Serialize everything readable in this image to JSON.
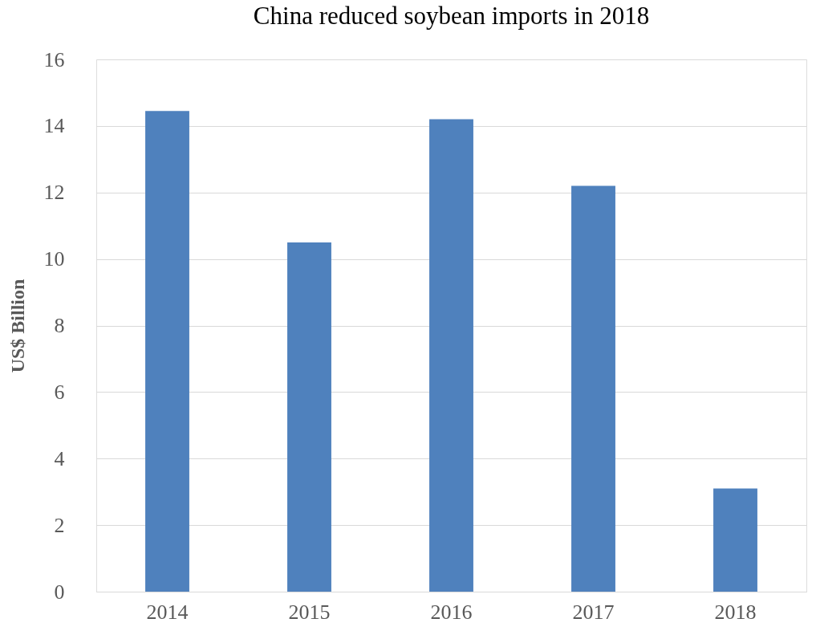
{
  "chart_data": {
    "type": "bar",
    "title": "China reduced soybean imports in 2018",
    "ylabel": "US$ Billion",
    "categories": [
      "2014",
      "2015",
      "2016",
      "2017",
      "2018"
    ],
    "values": [
      14.45,
      10.5,
      14.2,
      12.2,
      3.1
    ],
    "color": "#4f81bd",
    "ylim": [
      0,
      16
    ],
    "yticks": [
      0,
      2,
      4,
      6,
      8,
      10,
      12,
      14,
      16
    ],
    "grid": "y",
    "legend": false
  }
}
